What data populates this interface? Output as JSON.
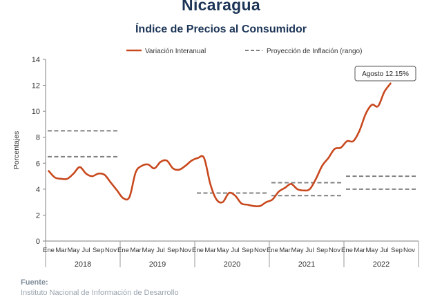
{
  "header": {
    "country": "Nicaragua",
    "subtitle": "Índice de Precios al Consumidor"
  },
  "footer": {
    "source_label": "Fuente:",
    "source_text": "Instituto Nacional de Información de Desarrollo"
  },
  "chart_data": {
    "type": "line",
    "ylabel": "Porcentajes",
    "ylim": [
      0,
      14
    ],
    "yticks": [
      0,
      2,
      4,
      6,
      8,
      10,
      12,
      14
    ],
    "grid": false,
    "legend_position": "top",
    "month_tick_labels": [
      "Ene",
      "Mar",
      "May",
      "Jul",
      "Sep",
      "Nov"
    ],
    "years": [
      "2018",
      "2019",
      "2020",
      "2021",
      "2022"
    ],
    "series": [
      {
        "name": "Variación Interanual",
        "color": "#c8481d",
        "style": "solid",
        "start": "2018-01",
        "values": [
          5.4,
          4.9,
          4.8,
          4.8,
          5.2,
          5.7,
          5.2,
          5.0,
          5.2,
          5.1,
          4.5,
          3.9,
          3.3,
          3.4,
          5.3,
          5.8,
          5.9,
          5.6,
          6.1,
          6.2,
          5.6,
          5.5,
          5.8,
          6.2,
          6.4,
          6.4,
          4.4,
          3.2,
          3.0,
          3.7,
          3.5,
          2.9,
          2.8,
          2.7,
          2.7,
          3.0,
          3.2,
          3.8,
          4.1,
          4.4,
          4.0,
          3.9,
          4.0,
          4.8,
          5.8,
          6.4,
          7.1,
          7.2,
          7.7,
          7.7,
          8.5,
          9.8,
          10.5,
          10.4,
          11.5,
          12.15
        ]
      },
      {
        "name": "Proyección de Inflación (rango)",
        "color": "#808080",
        "style": "dashed",
        "ranges": [
          {
            "year": "2018",
            "low": 6.5,
            "high": 8.5
          },
          {
            "year": "2020",
            "low": 3.7,
            "high": 3.7
          },
          {
            "year": "2021",
            "low": 3.5,
            "high": 4.5
          },
          {
            "year": "2022",
            "low": 4.0,
            "high": 5.0
          }
        ]
      }
    ],
    "annotation": "Agosto 12.15%"
  }
}
